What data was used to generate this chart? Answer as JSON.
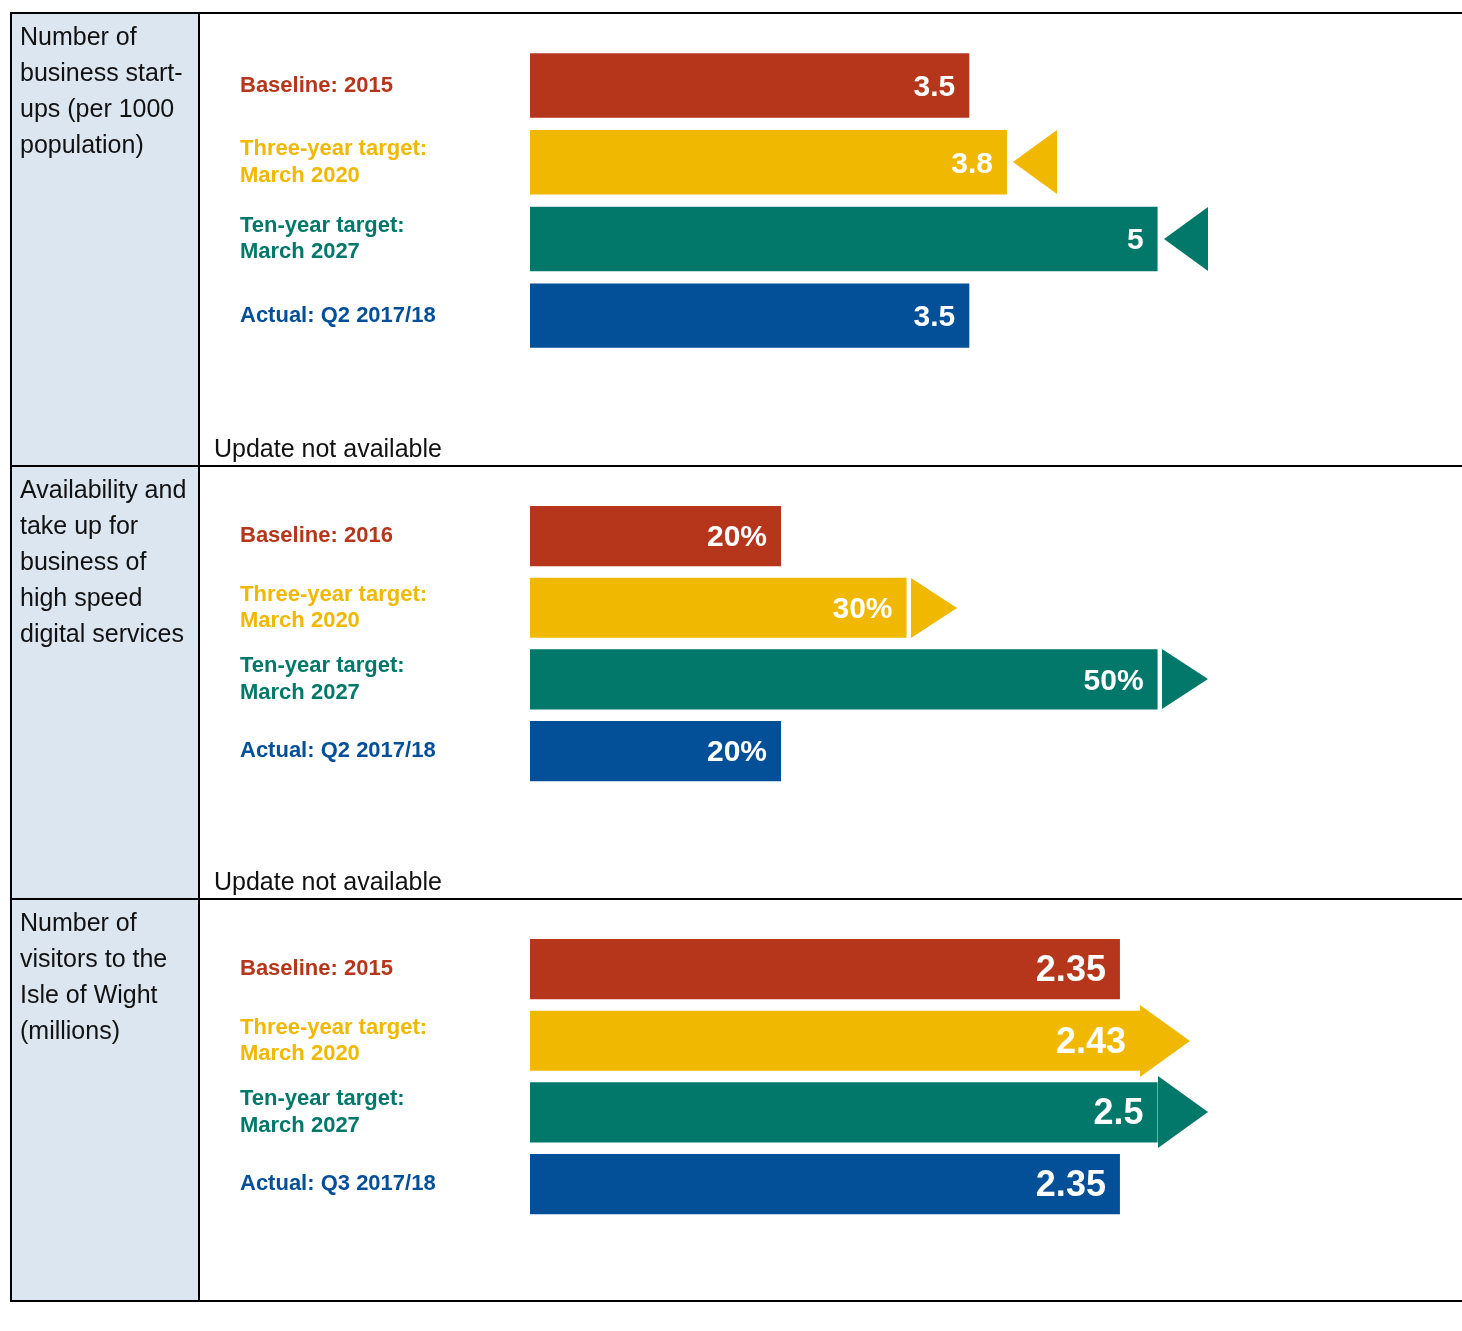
{
  "chart_data": [
    {
      "type": "bar",
      "orientation": "horizontal",
      "ylabel": "Number of business start-ups (per 1000 population)",
      "categories": [
        "Baseline: 2015",
        "Three-year target: March 2020",
        "Ten-year target: March 2027",
        "Actual: Q2 2017/18"
      ],
      "values": [
        3.5,
        3.8,
        5,
        3.5
      ],
      "colors": [
        "#b5361a",
        "#f0b800",
        "#02786a",
        "#034f98"
      ],
      "data_labels": true,
      "annotations": [
        "Update not available"
      ]
    },
    {
      "type": "bar",
      "orientation": "horizontal",
      "ylabel": "Availability and take up for business of high speed digital services",
      "categories": [
        "Baseline: 2016",
        "Three-year target: March 2020",
        "Ten-year target: March 2027",
        "Actual: Q2 2017/18"
      ],
      "values": [
        20,
        30,
        50,
        20
      ],
      "value_labels": [
        "20%",
        "30%",
        "50%",
        "20%"
      ],
      "colors": [
        "#b5361a",
        "#f0b800",
        "#02786a",
        "#034f98"
      ],
      "annotations": [
        "Update not available"
      ]
    },
    {
      "type": "bar",
      "orientation": "horizontal",
      "ylabel": "Number of visitors to the Isle of Wight (millions)",
      "categories": [
        "Baseline: 2015",
        "Three-year target: March 2020",
        "Ten-year target: March 2027",
        "Actual: Q3 2017/18"
      ],
      "values": [
        2.35,
        2.43,
        2.5,
        2.35
      ],
      "colors": [
        "#b5361a",
        "#f0b800",
        "#02786a",
        "#034f98"
      ],
      "data_labels": true
    }
  ]
}
